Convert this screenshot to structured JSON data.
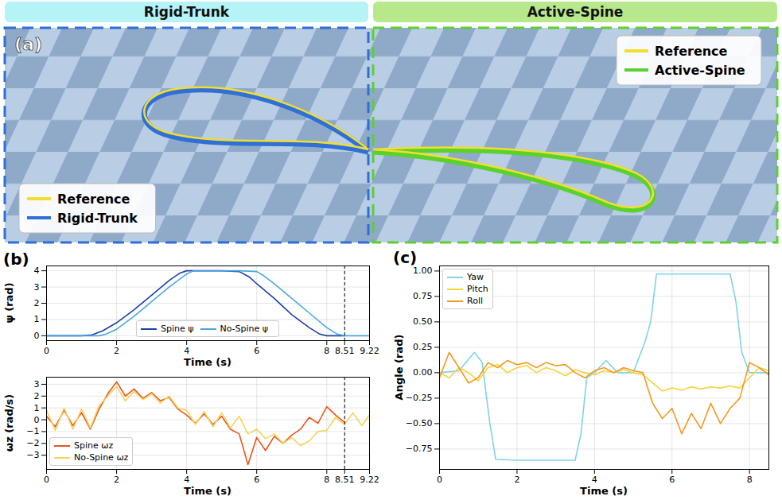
{
  "figure": {
    "heads": [
      "Rigid-Trunk",
      "Active-Spine"
    ],
    "panel_a": {
      "panel": "(a)",
      "left_legend": [
        {
          "name": "Reference",
          "color": "#f2de2e"
        },
        {
          "name": "Rigid-Trunk",
          "color": "#2e6fd8"
        }
      ],
      "right_legend": [
        {
          "name": "Reference",
          "color": "#f2de2e"
        },
        {
          "name": "Active-Spine",
          "color": "#5ad22e"
        }
      ]
    }
  },
  "chart_data": [
    {
      "type": "line",
      "panel": "(b)",
      "xlabel": "Time (s)",
      "ylabel": "ψ (rad)",
      "xlim": [
        0,
        9.22
      ],
      "xticks": [
        0,
        2,
        4,
        6,
        8,
        8.51,
        9.22
      ],
      "ylim": [
        -0.3,
        4.3
      ],
      "yticks": [
        0,
        1,
        2,
        3,
        4
      ],
      "grid": true,
      "legend": "lower center",
      "vline": 8.51,
      "series": [
        {
          "name": "Spine ψ",
          "color": "#1f3fa8",
          "x": [
            0,
            0.5,
            1,
            1.3,
            1.6,
            2,
            2.5,
            3,
            3.5,
            3.8,
            4,
            4.5,
            5,
            5.5,
            5.8,
            6,
            6.5,
            7,
            7.5,
            7.8,
            8,
            8.51
          ],
          "values": [
            0,
            0,
            0,
            0.05,
            0.3,
            0.8,
            1.6,
            2.5,
            3.4,
            3.85,
            4.0,
            4.0,
            4.0,
            3.95,
            3.6,
            3.2,
            2.3,
            1.3,
            0.5,
            0.1,
            0.0,
            0.0
          ]
        },
        {
          "name": "No-Spine ψ",
          "color": "#4aa8e0",
          "x": [
            0,
            0.5,
            1,
            1.5,
            1.7,
            2,
            2.5,
            3,
            3.5,
            4,
            4.2,
            4.5,
            5,
            5.5,
            6,
            6.2,
            6.5,
            7,
            7.5,
            8,
            8.3,
            8.51,
            9,
            9.22
          ],
          "values": [
            0,
            0,
            0,
            0,
            0.1,
            0.4,
            1.2,
            2.1,
            3.0,
            3.8,
            4.0,
            4.0,
            4.0,
            4.0,
            3.95,
            3.7,
            3.2,
            2.3,
            1.4,
            0.5,
            0.1,
            0.0,
            0.0,
            0.0
          ]
        }
      ]
    },
    {
      "type": "line",
      "xlabel": "Time (s)",
      "ylabel": "ωz (rad/s)",
      "xlim": [
        0,
        9.22
      ],
      "xticks": [
        0,
        2,
        4,
        6,
        8,
        8.51,
        9.22
      ],
      "ylim": [
        -4.2,
        3.6
      ],
      "yticks": [
        {
          "value": -3,
          "label": "−3"
        },
        {
          "value": -2,
          "label": "−2"
        },
        {
          "value": -1,
          "label": "−1"
        },
        0,
        1,
        2,
        3
      ],
      "grid": true,
      "legend": "lower left",
      "vline": 8.51,
      "series": [
        {
          "name": "Spine ωz",
          "color": "#e8551a",
          "x": [
            0,
            0.25,
            0.5,
            0.75,
            1,
            1.25,
            1.5,
            1.75,
            2,
            2.25,
            2.5,
            2.75,
            3,
            3.25,
            3.5,
            3.75,
            4,
            4.25,
            4.5,
            4.75,
            5,
            5.25,
            5.5,
            5.75,
            6,
            6.25,
            6.5,
            6.75,
            7,
            7.25,
            7.5,
            7.75,
            8,
            8.25,
            8.5
          ],
          "values": [
            0.3,
            -0.6,
            0.8,
            -0.5,
            0.6,
            -0.8,
            0.9,
            2.2,
            3.2,
            2.0,
            2.6,
            1.8,
            2.3,
            1.6,
            1.9,
            0.9,
            0.4,
            -0.3,
            0.5,
            -0.4,
            0.3,
            -0.8,
            -1.2,
            -3.8,
            -1.5,
            -2.6,
            -1.4,
            -2.0,
            -1.3,
            -0.8,
            0.2,
            -0.3,
            1.1,
            0.4,
            -0.2
          ]
        },
        {
          "name": "No-Spine ωz",
          "color": "#f4d35e",
          "x": [
            0,
            0.25,
            0.5,
            0.75,
            1,
            1.25,
            1.5,
            1.75,
            2,
            2.25,
            2.5,
            2.75,
            3,
            3.25,
            3.5,
            3.75,
            4,
            4.25,
            4.5,
            4.75,
            5,
            5.25,
            5.5,
            5.75,
            6,
            6.25,
            6.5,
            6.75,
            7,
            7.25,
            7.5,
            7.75,
            8,
            8.25,
            8.5,
            8.75,
            9,
            9.22
          ],
          "values": [
            0.8,
            -0.9,
            1.0,
            -0.8,
            0.9,
            -0.7,
            1.2,
            2.0,
            2.8,
            1.6,
            2.4,
            1.7,
            2.2,
            1.4,
            2.0,
            1.0,
            0.8,
            -0.4,
            0.7,
            -0.6,
            0.6,
            -0.7,
            0.3,
            -1.2,
            -0.8,
            -1.6,
            -1.2,
            -2.0,
            -1.5,
            -2.2,
            -1.8,
            -1.0,
            -0.9,
            0.2,
            -0.4,
            0.6,
            -0.5,
            0.4
          ]
        }
      ]
    },
    {
      "type": "line",
      "panel": "(c)",
      "xlabel": "Time (s)",
      "ylabel": "Angle (rad)",
      "xlim": [
        0,
        8.5
      ],
      "xticks": [
        0,
        2,
        4,
        6,
        8
      ],
      "ylim": [
        -0.95,
        1.05
      ],
      "yticks": [
        {
          "value": -0.75,
          "label": "−0.75"
        },
        {
          "value": -0.5,
          "label": "−0.50"
        },
        {
          "value": -0.25,
          "label": "−0.25"
        },
        {
          "value": 0,
          "label": "0.00"
        },
        {
          "value": 0.25,
          "label": "0.25"
        },
        {
          "value": 0.5,
          "label": "0.50"
        },
        {
          "value": 0.75,
          "label": "0.75"
        },
        {
          "value": 1,
          "label": "1.00"
        }
      ],
      "grid": true,
      "legend": "upper left",
      "series": [
        {
          "name": "Yaw",
          "color": "#7fd3e8",
          "x": [
            0,
            0.5,
            0.9,
            1.1,
            1.3,
            1.45,
            2,
            3,
            3.5,
            3.65,
            3.8,
            4.0,
            4.3,
            4.6,
            5.0,
            5.3,
            5.45,
            5.6,
            6,
            7,
            7.5,
            7.65,
            7.8,
            8.0,
            8.5
          ],
          "values": [
            0,
            0.02,
            0.2,
            0.1,
            -0.5,
            -0.85,
            -0.86,
            -0.86,
            -0.86,
            -0.6,
            -0.05,
            0.0,
            0.12,
            0.0,
            0.0,
            0.3,
            0.5,
            0.97,
            0.97,
            0.97,
            0.97,
            0.7,
            0.2,
            0.0,
            0.0
          ]
        },
        {
          "name": "Pitch",
          "color": "#f5d33a",
          "x": [
            0,
            0.25,
            0.5,
            0.75,
            1,
            1.25,
            1.5,
            1.75,
            2,
            2.25,
            2.5,
            2.75,
            3,
            3.25,
            3.5,
            3.75,
            4,
            4.25,
            4.5,
            4.75,
            5,
            5.25,
            5.5,
            5.75,
            6,
            6.25,
            6.5,
            6.75,
            7,
            7.25,
            7.5,
            7.75,
            8,
            8.25,
            8.5
          ],
          "values": [
            0.0,
            -0.05,
            0.05,
            0.0,
            -0.08,
            0.05,
            0.08,
            0.0,
            0.05,
            0.07,
            0.0,
            0.05,
            0.02,
            -0.03,
            0.03,
            0.0,
            -0.02,
            0.02,
            0.0,
            0.03,
            0.0,
            -0.02,
            -0.1,
            -0.18,
            -0.15,
            -0.17,
            -0.14,
            -0.16,
            -0.14,
            -0.15,
            -0.13,
            -0.15,
            -0.05,
            0.05,
            0.02
          ]
        },
        {
          "name": "Roll",
          "color": "#f29a1e",
          "x": [
            0,
            0.25,
            0.5,
            0.75,
            1,
            1.25,
            1.5,
            1.75,
            2,
            2.25,
            2.5,
            2.75,
            3,
            3.25,
            3.5,
            3.75,
            4,
            4.25,
            4.5,
            4.75,
            5,
            5.25,
            5.5,
            5.75,
            6,
            6.25,
            6.5,
            6.75,
            7,
            7.25,
            7.5,
            7.75,
            8,
            8.25,
            8.5
          ],
          "values": [
            -0.05,
            0.2,
            0.05,
            -0.1,
            -0.05,
            0.1,
            0.05,
            0.12,
            0.08,
            0.1,
            0.05,
            0.1,
            0.07,
            0.08,
            0.0,
            -0.05,
            0.02,
            0.05,
            0.0,
            0.05,
            0.02,
            0.0,
            -0.3,
            -0.45,
            -0.35,
            -0.6,
            -0.4,
            -0.55,
            -0.3,
            -0.5,
            -0.35,
            -0.25,
            0.1,
            0.05,
            -0.02
          ]
        }
      ]
    }
  ]
}
